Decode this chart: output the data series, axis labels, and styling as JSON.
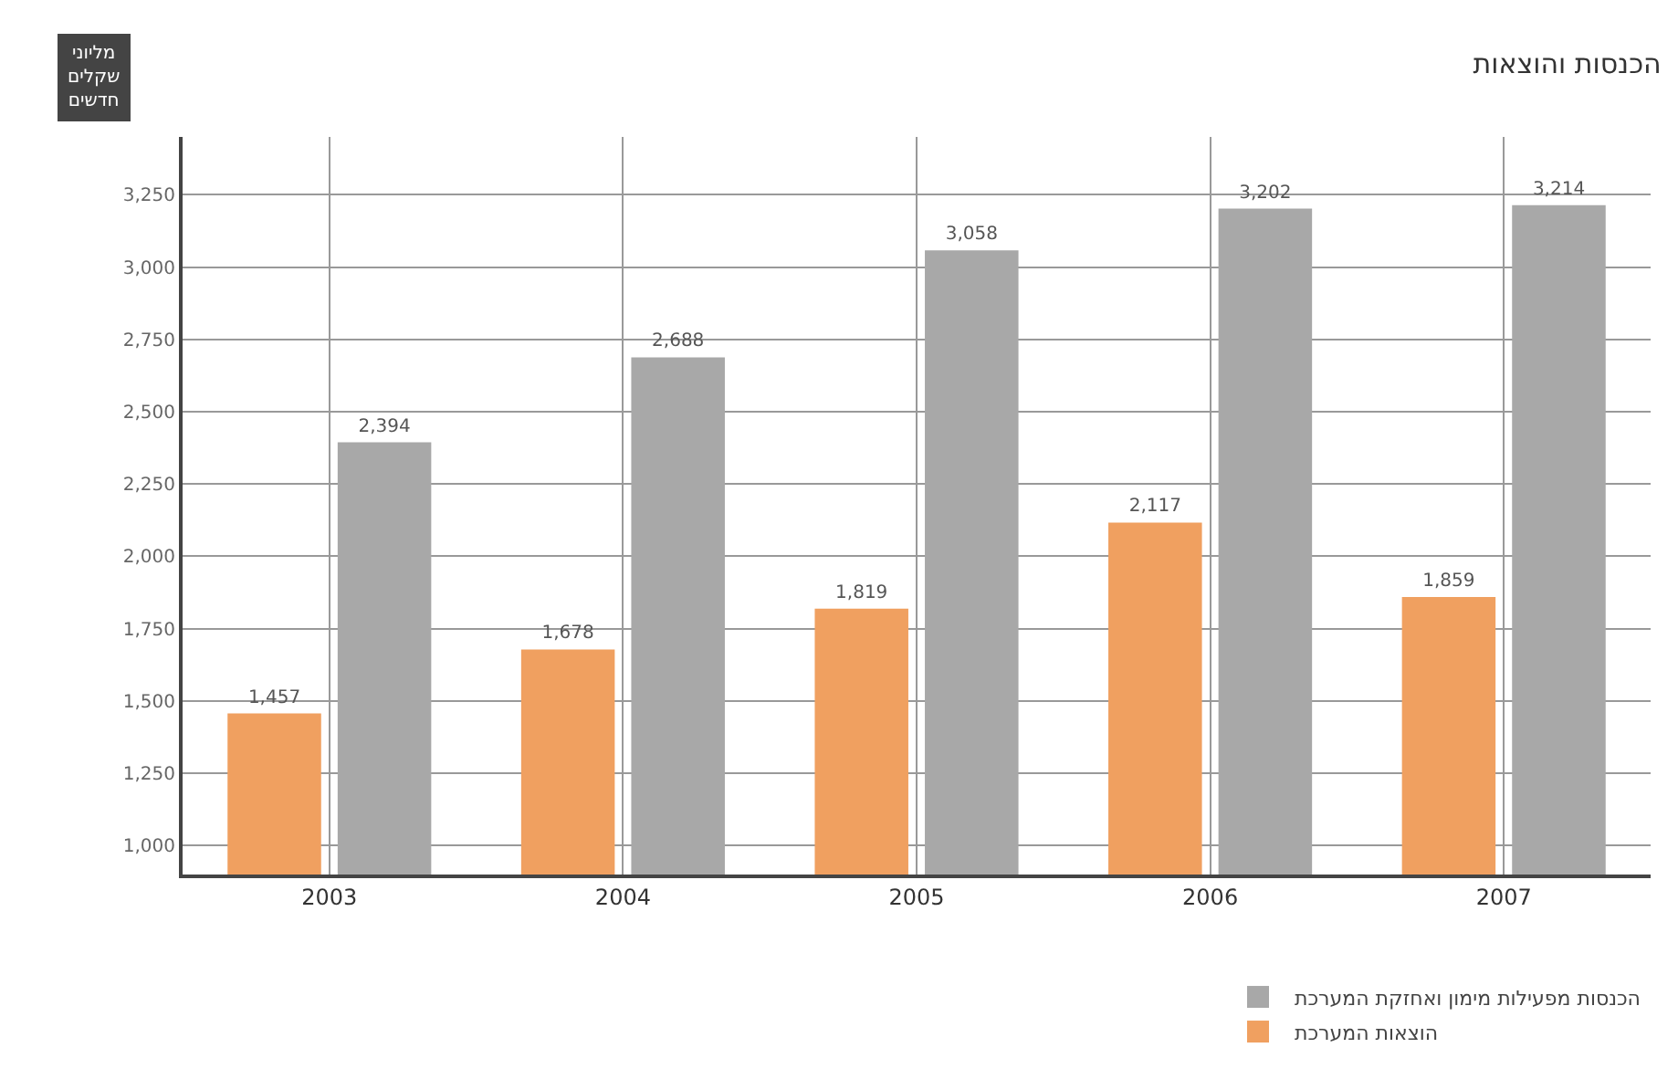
{
  "chart_data": {
    "type": "bar",
    "title": "הכנסות והוצאות",
    "ylabel": "מליוני שקלים חדשים",
    "categories": [
      "2003",
      "2004",
      "2005",
      "2006",
      "2007"
    ],
    "series": [
      {
        "name": "הוצאות המערכת",
        "color": "#f0a060",
        "values": [
          1457,
          1678,
          1819,
          2117,
          1859
        ],
        "value_labels": [
          "1,457",
          "1,678",
          "1,819",
          "2,117",
          "1,859"
        ]
      },
      {
        "name": "הכנסות מפעילות מימון ואחזקת המערכת",
        "color": "#a8a8a8",
        "values": [
          2394,
          2688,
          3058,
          3202,
          3214
        ],
        "value_labels": [
          "2,394",
          "2,688",
          "3,058",
          "3,202",
          "3,214"
        ]
      }
    ],
    "ylim": [
      900,
      3450
    ],
    "yticks": [
      {
        "value": 1000,
        "label": "1,000"
      },
      {
        "value": 1250,
        "label": "1,250"
      },
      {
        "value": 1500,
        "label": "1,500"
      },
      {
        "value": 1750,
        "label": "1,750"
      },
      {
        "value": 2000,
        "label": "2,000"
      },
      {
        "value": 2250,
        "label": "2,250"
      },
      {
        "value": 2500,
        "label": "2,500"
      },
      {
        "value": 2750,
        "label": "2,750"
      },
      {
        "value": 3000,
        "label": "3,000"
      },
      {
        "value": 3250,
        "label": "3,250"
      }
    ],
    "grid": true,
    "legend": "bottom right"
  }
}
